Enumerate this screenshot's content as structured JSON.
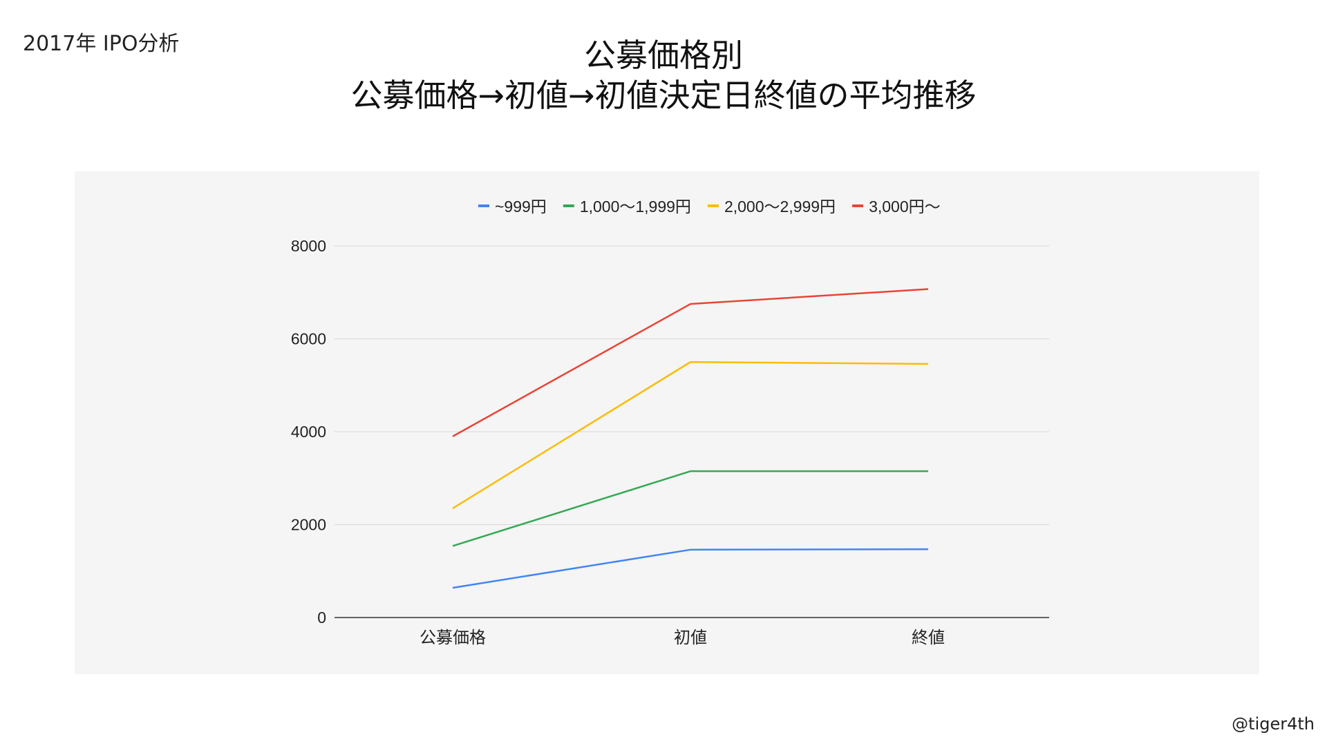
{
  "header": {
    "corner_label": "2017年 IPO分析",
    "title_line1": "公募価格別",
    "title_line2": "公募価格→初値→初値決定日終値の平均推移"
  },
  "footer": {
    "handle": "@tiger4th"
  },
  "chart_data": {
    "type": "line",
    "title": "",
    "xlabel": "",
    "ylabel": "",
    "categories": [
      "公募価格",
      "初値",
      "終値"
    ],
    "ylim": [
      0,
      8000
    ],
    "yticks": [
      0,
      2000,
      4000,
      6000,
      8000
    ],
    "grid": true,
    "legend_position": "top",
    "series": [
      {
        "name": "~999円",
        "color": "#4285f4",
        "values": [
          640,
          1460,
          1470
        ]
      },
      {
        "name": "1,000～1,999円",
        "color": "#34a853",
        "values": [
          1540,
          3150,
          3150
        ]
      },
      {
        "name": "2,000～2,999円",
        "color": "#fbbc04",
        "values": [
          2350,
          5500,
          5460
        ]
      },
      {
        "name": "3,000円～",
        "color": "#ea4335",
        "values": [
          3900,
          6750,
          7070
        ]
      }
    ]
  }
}
